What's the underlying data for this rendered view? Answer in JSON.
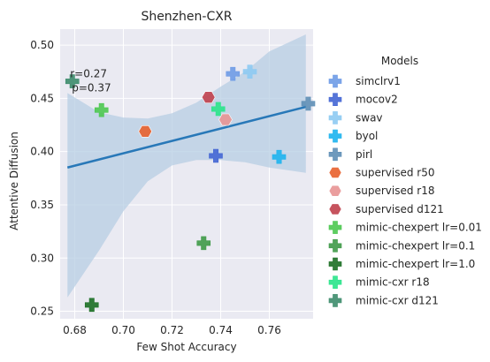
{
  "chart_data": {
    "type": "scatter",
    "title": "Shenzhen-CXR",
    "xlabel": "Few Shot Accuracy",
    "ylabel": "Attentive Diffusion",
    "xlim": [
      0.674,
      0.778
    ],
    "ylim": [
      0.243,
      0.515
    ],
    "xticks": [
      0.68,
      0.7,
      0.72,
      0.74,
      0.76
    ],
    "xtick_labels": [
      "0.68",
      "0.70",
      "0.72",
      "0.74",
      "0.76"
    ],
    "yticks": [
      0.25,
      0.3,
      0.35,
      0.4,
      0.45,
      0.5
    ],
    "ytick_labels": [
      "0.25",
      "0.30",
      "0.35",
      "0.40",
      "0.45",
      "0.50"
    ],
    "grid": true,
    "annotation": {
      "lines": [
        "r=0.27",
        "p=0.37"
      ],
      "x": 0.677,
      "y": 0.473
    },
    "regression": {
      "x_start": 0.677,
      "y_start": 0.385,
      "x_end": 0.775,
      "y_end": 0.442,
      "ci_band": [
        {
          "x": 0.677,
          "lo": 0.263,
          "hi": 0.455
        },
        {
          "x": 0.69,
          "lo": 0.307,
          "hi": 0.437
        },
        {
          "x": 0.7,
          "lo": 0.344,
          "hi": 0.432
        },
        {
          "x": 0.71,
          "lo": 0.372,
          "hi": 0.431
        },
        {
          "x": 0.72,
          "lo": 0.387,
          "hi": 0.436
        },
        {
          "x": 0.73,
          "lo": 0.392,
          "hi": 0.446
        },
        {
          "x": 0.74,
          "lo": 0.392,
          "hi": 0.461
        },
        {
          "x": 0.75,
          "lo": 0.39,
          "hi": 0.475
        },
        {
          "x": 0.76,
          "lo": 0.385,
          "hi": 0.494
        },
        {
          "x": 0.775,
          "lo": 0.38,
          "hi": 0.51
        }
      ],
      "color": "#2878b8",
      "band_color": "#b7cde3"
    },
    "legend": {
      "title": "Models",
      "placement": "right"
    },
    "series": [
      {
        "name": "simclrv1",
        "marker": "plus",
        "color": "#6e9be6",
        "points": [
          {
            "x": 0.745,
            "y": 0.473
          }
        ]
      },
      {
        "name": "mocov2",
        "marker": "plus",
        "color": "#4466d4",
        "points": [
          {
            "x": 0.738,
            "y": 0.396
          }
        ]
      },
      {
        "name": "swav",
        "marker": "plus",
        "color": "#8ecaf2",
        "points": [
          {
            "x": 0.752,
            "y": 0.475
          }
        ]
      },
      {
        "name": "byol",
        "marker": "plus",
        "color": "#1eb4ee",
        "points": [
          {
            "x": 0.764,
            "y": 0.395
          }
        ]
      },
      {
        "name": "pirl",
        "marker": "plus",
        "color": "#5f8fb6",
        "points": [
          {
            "x": 0.776,
            "y": 0.445
          }
        ]
      },
      {
        "name": "supervised r50",
        "marker": "hexagon",
        "color": "#e8612c",
        "points": [
          {
            "x": 0.709,
            "y": 0.419
          }
        ]
      },
      {
        "name": "supervised r18",
        "marker": "hexagon",
        "color": "#e89494",
        "points": [
          {
            "x": 0.742,
            "y": 0.43
          }
        ]
      },
      {
        "name": "supervised d121",
        "marker": "hexagon",
        "color": "#c0404c",
        "points": [
          {
            "x": 0.735,
            "y": 0.451
          }
        ]
      },
      {
        "name": "mimic-chexpert lr=0.01",
        "marker": "plus",
        "color": "#4cc850",
        "points": [
          {
            "x": 0.691,
            "y": 0.439
          }
        ]
      },
      {
        "name": "mimic-chexpert lr=0.1",
        "marker": "plus",
        "color": "#3f9a48",
        "points": [
          {
            "x": 0.733,
            "y": 0.314
          }
        ]
      },
      {
        "name": "mimic-chexpert lr=1.0",
        "marker": "plus",
        "color": "#1b6f24",
        "points": [
          {
            "x": 0.687,
            "y": 0.256
          }
        ]
      },
      {
        "name": "mimic-cxr r18",
        "marker": "plus",
        "color": "#2ae48a",
        "points": [
          {
            "x": 0.739,
            "y": 0.44
          }
        ]
      },
      {
        "name": "mimic-cxr d121",
        "marker": "plus",
        "color": "#3d8c6c",
        "points": [
          {
            "x": 0.679,
            "y": 0.466
          }
        ]
      }
    ]
  }
}
